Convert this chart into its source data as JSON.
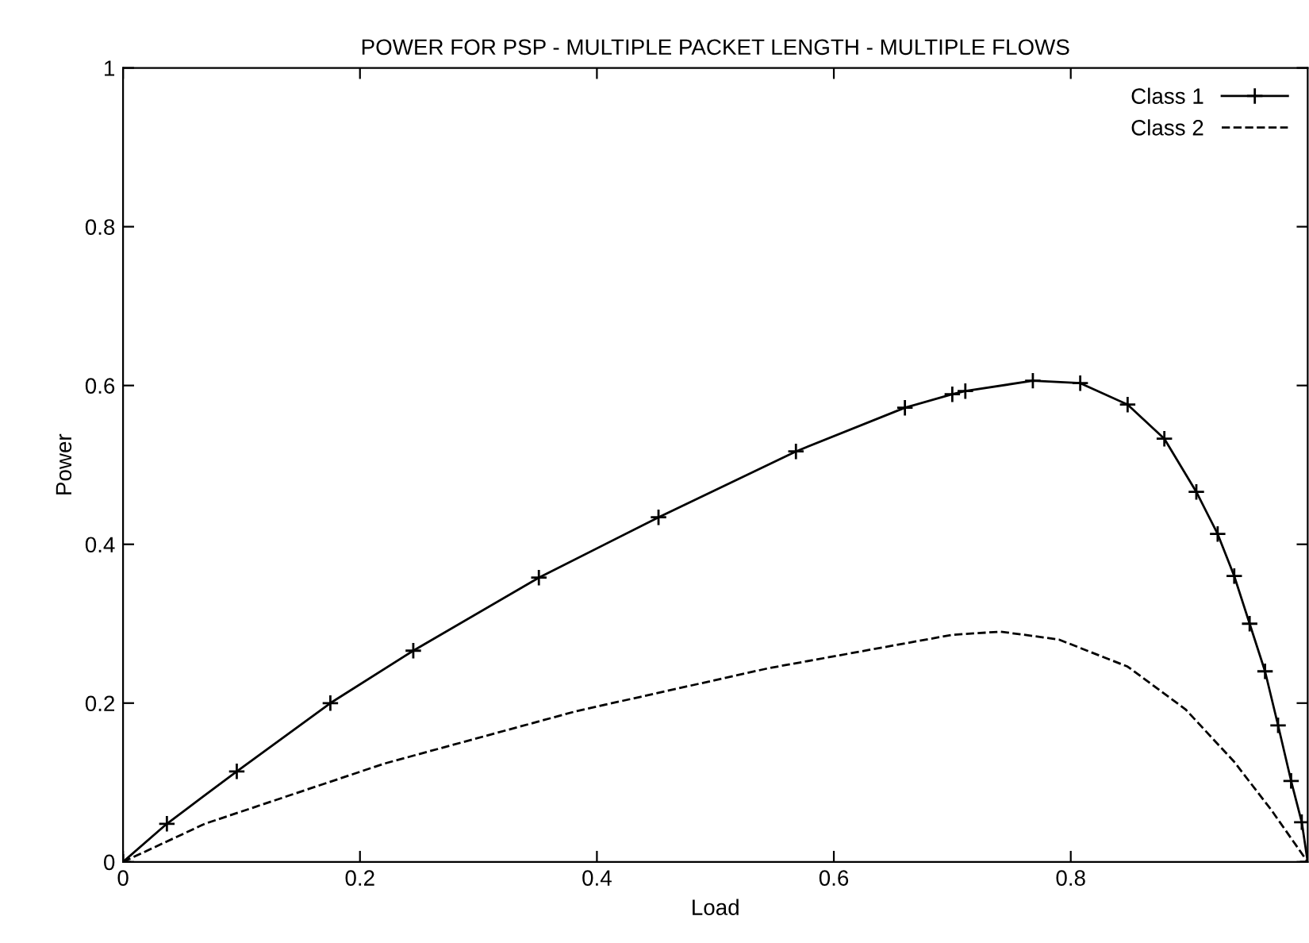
{
  "chart_data": {
    "type": "line",
    "title": "POWER FOR PSP - MULTIPLE PACKET LENGTH - MULTIPLE FLOWS",
    "xlabel": "Load",
    "ylabel": "Power",
    "xlim": [
      0,
      1
    ],
    "ylim": [
      0,
      1
    ],
    "xticks": [
      0,
      0.2,
      0.4,
      0.6,
      0.8
    ],
    "yticks": [
      0,
      0.2,
      0.4,
      0.6,
      0.8,
      1
    ],
    "grid": false,
    "legend": "top right",
    "series": [
      {
        "name": "Class 1",
        "color": "#000000",
        "marker": "cross",
        "line_style": "solid",
        "x": [
          0,
          0.037,
          0.096,
          0.175,
          0.245,
          0.351,
          0.452,
          0.568,
          0.66,
          0.7,
          0.711,
          0.768,
          0.808,
          0.848,
          0.879,
          0.906,
          0.924,
          0.938,
          0.951,
          0.964,
          0.975,
          0.986,
          0.995,
          1
        ],
        "values": [
          0,
          0.048,
          0.114,
          0.2,
          0.266,
          0.358,
          0.434,
          0.517,
          0.572,
          0.589,
          0.593,
          0.606,
          0.603,
          0.576,
          0.533,
          0.466,
          0.413,
          0.36,
          0.3,
          0.24,
          0.172,
          0.102,
          0.05,
          0
        ]
      },
      {
        "name": "Class 2",
        "color": "#000000",
        "marker": "none",
        "line_style": "dashed",
        "x": [
          0,
          0.069,
          0.221,
          0.383,
          0.545,
          0.7,
          0.741,
          0.79,
          0.848,
          0.897,
          0.938,
          0.969,
          1
        ],
        "values": [
          0,
          0.048,
          0.124,
          0.19,
          0.244,
          0.286,
          0.29,
          0.28,
          0.246,
          0.192,
          0.126,
          0.066,
          0
        ]
      }
    ]
  }
}
